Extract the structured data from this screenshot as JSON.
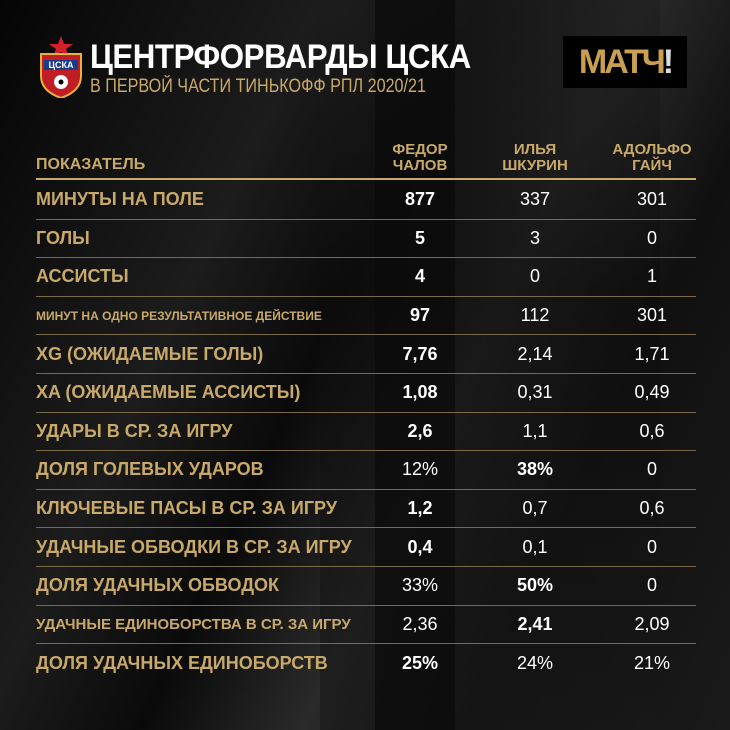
{
  "header": {
    "title": "ЦЕНТРФОРВАРДЫ ЦСКА",
    "subtitle": "В ПЕРВОЙ ЧАСТИ ТИНЬКОФФ РПЛ 2020/21",
    "club_logo_text": "ЦСКА",
    "broadcaster_logo": "МАТЧ!"
  },
  "colors": {
    "accent": "#c9a96a",
    "background": "#0b0b0b",
    "value": "#ffffff"
  },
  "table": {
    "label_header": "ПОКАЗАТЕЛЬ",
    "columns": [
      {
        "line1": "ФЕДОР",
        "line2": "ЧАЛОВ"
      },
      {
        "line1": "ИЛЬЯ",
        "line2": "ШКУРИН"
      },
      {
        "line1": "АДОЛЬФО",
        "line2": "ГАЙЧ"
      }
    ],
    "rows": [
      {
        "label": "МИНУТЫ НА ПОЛЕ",
        "values": [
          "877",
          "337",
          "301"
        ],
        "best": 0
      },
      {
        "label": "ГОЛЫ",
        "values": [
          "5",
          "3",
          "0"
        ],
        "best": 0
      },
      {
        "label": "АССИСТЫ",
        "values": [
          "4",
          "0",
          "1"
        ],
        "best": 0
      },
      {
        "label": "МИНУТ НА ОДНО РЕЗУЛЬТАТИВНОЕ ДЕЙСТВИЕ",
        "values": [
          "97",
          "112",
          "301"
        ],
        "best": 0,
        "size": "small"
      },
      {
        "label": "XG (ОЖИДАЕМЫЕ ГОЛЫ)",
        "values": [
          "7,76",
          "2,14",
          "1,71"
        ],
        "best": 0
      },
      {
        "label": "XA (ОЖИДАЕМЫЕ АССИСТЫ)",
        "values": [
          "1,08",
          "0,31",
          "0,49"
        ],
        "best": 0
      },
      {
        "label": "УДАРЫ В СР. ЗА ИГРУ",
        "values": [
          "2,6",
          "1,1",
          "0,6"
        ],
        "best": 0
      },
      {
        "label": "ДОЛЯ ГОЛЕВЫХ УДАРОВ",
        "values": [
          "12%",
          "38%",
          "0"
        ],
        "best": 1
      },
      {
        "label": "КЛЮЧЕВЫЕ ПАСЫ В СР. ЗА ИГРУ",
        "values": [
          "1,2",
          "0,7",
          "0,6"
        ],
        "best": 0
      },
      {
        "label": "УДАЧНЫЕ ОБВОДКИ В СР. ЗА ИГРУ",
        "values": [
          "0,4",
          "0,1",
          "0"
        ],
        "best": 0
      },
      {
        "label": "ДОЛЯ УДАЧНЫХ ОБВОДОК",
        "values": [
          "33%",
          "50%",
          "0"
        ],
        "best": 1
      },
      {
        "label": "УДАЧНЫЕ ЕДИНОБОРСТВА В СР. ЗА ИГРУ",
        "values": [
          "2,36",
          "2,41",
          "2,09"
        ],
        "best": 1,
        "size": "mid"
      },
      {
        "label": "ДОЛЯ УДАЧНЫХ ЕДИНОБОРСТВ",
        "values": [
          "25%",
          "24%",
          "21%"
        ],
        "best": 0
      }
    ]
  }
}
